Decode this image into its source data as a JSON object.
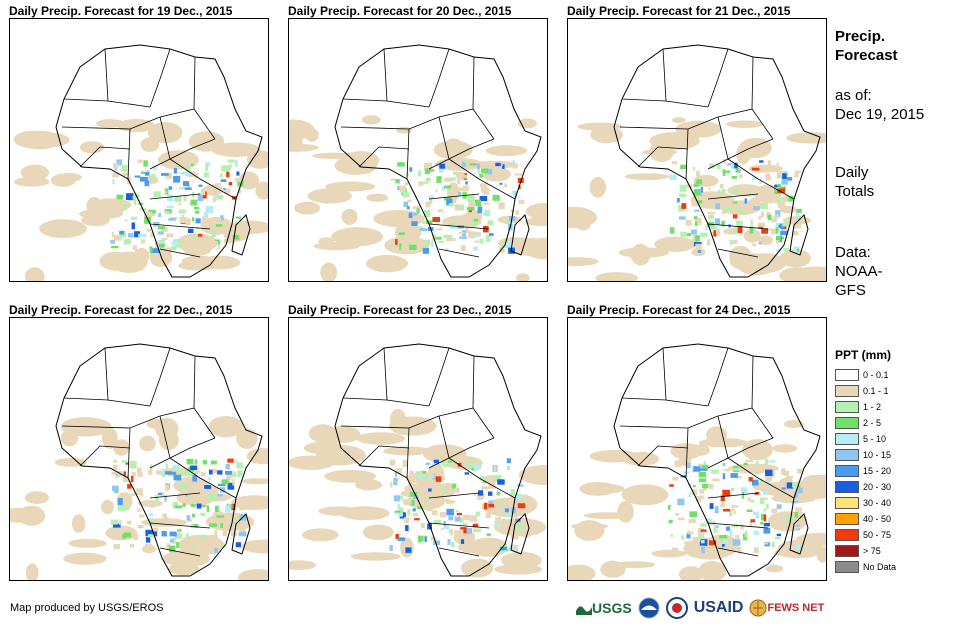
{
  "panels": [
    {
      "title": "Daily Precip. Forecast for 19 Dec., 2015"
    },
    {
      "title": "Daily Precip. Forecast for 20 Dec., 2015"
    },
    {
      "title": "Daily Precip. Forecast for 21 Dec., 2015"
    },
    {
      "title": "Daily Precip. Forecast for 22 Dec., 2015"
    },
    {
      "title": "Daily Precip. Forecast for 23 Dec., 2015"
    },
    {
      "title": "Daily Precip. Forecast for 24 Dec., 2015"
    }
  ],
  "info": {
    "title_line1": "Precip.",
    "title_line2": "Forecast",
    "asof_label": "as of:",
    "asof_date": "Dec 19, 2015",
    "totals_line1": "Daily",
    "totals_line2": "Totals",
    "data_line1": "Data:",
    "data_line2": "NOAA-",
    "data_line3": "GFS"
  },
  "legend": {
    "title": "PPT (mm)",
    "items": [
      {
        "label": "0 - 0.1",
        "color": "#ffffff"
      },
      {
        "label": "0.1 - 1",
        "color": "#e8d7b8"
      },
      {
        "label": "1 - 2",
        "color": "#b4f0b0"
      },
      {
        "label": "2 - 5",
        "color": "#6fe06a"
      },
      {
        "label": "5 - 10",
        "color": "#b5ecf5"
      },
      {
        "label": "10 - 15",
        "color": "#8fc7f2"
      },
      {
        "label": "15 - 20",
        "color": "#4a9cf0"
      },
      {
        "label": "20 - 30",
        "color": "#1a5fe0"
      },
      {
        "label": "30 - 40",
        "color": "#ffe27a"
      },
      {
        "label": "40 - 50",
        "color": "#ffa200"
      },
      {
        "label": "50 - 75",
        "color": "#f53a0a"
      },
      {
        "label": "> 75",
        "color": "#a01818"
      },
      {
        "label": "No Data",
        "color": "#8c8c8c"
      }
    ]
  },
  "credit": "Map produced by USGS/EROS",
  "logos": {
    "usgs": "USGS",
    "usaid": "USAID",
    "fewsnet": "FEWS NET"
  }
}
